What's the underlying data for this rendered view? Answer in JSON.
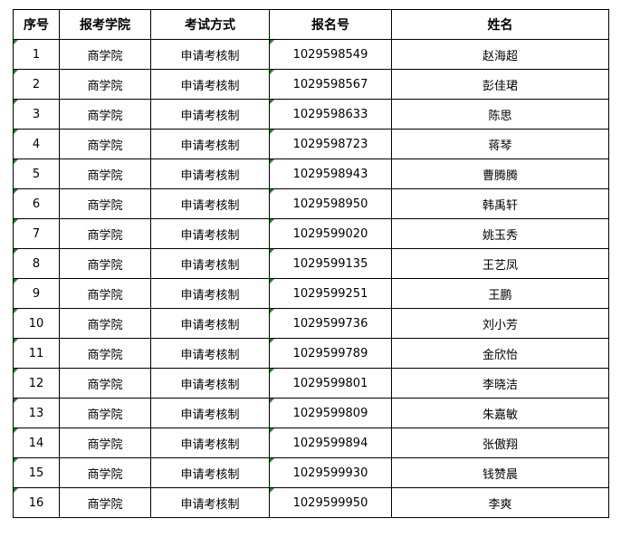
{
  "headers": [
    "序号",
    "报考学院",
    "考试方式",
    "报名号",
    "姓名"
  ],
  "rows": [
    [
      "1",
      "商学院",
      "申请考核制",
      "1029598549",
      "赵海超"
    ],
    [
      "2",
      "商学院",
      "申请考核制",
      "1029598567",
      "彭佳珺"
    ],
    [
      "3",
      "商学院",
      "申请考核制",
      "1029598633",
      "陈思"
    ],
    [
      "4",
      "商学院",
      "申请考核制",
      "1029598723",
      "蒋琴"
    ],
    [
      "5",
      "商学院",
      "申请考核制",
      "1029598943",
      "曹腾腾"
    ],
    [
      "6",
      "商学院",
      "申请考核制",
      "1029598950",
      "韩禹轩"
    ],
    [
      "7",
      "商学院",
      "申请考核制",
      "1029599020",
      "姚玉秀"
    ],
    [
      "8",
      "商学院",
      "申请考核制",
      "1029599135",
      "王艺凤"
    ],
    [
      "9",
      "商学院",
      "申请考核制",
      "1029599251",
      "王鹏"
    ],
    [
      "10",
      "商学院",
      "申请考核制",
      "1029599736",
      "刘小芳"
    ],
    [
      "11",
      "商学院",
      "申请考核制",
      "1029599789",
      "金欣怡"
    ],
    [
      "12",
      "商学院",
      "申请考核制",
      "1029599801",
      "李晓洁"
    ],
    [
      "13",
      "商学院",
      "申请考核制",
      "1029599809",
      "朱嘉敏"
    ],
    [
      "14",
      "商学院",
      "申请考核制",
      "1029599894",
      "张傲翔"
    ],
    [
      "15",
      "商学院",
      "申请考核制",
      "1029599930",
      "钱赞晨"
    ],
    [
      "16",
      "商学院",
      "申请考核制",
      "1029599950",
      "李爽"
    ]
  ]
}
